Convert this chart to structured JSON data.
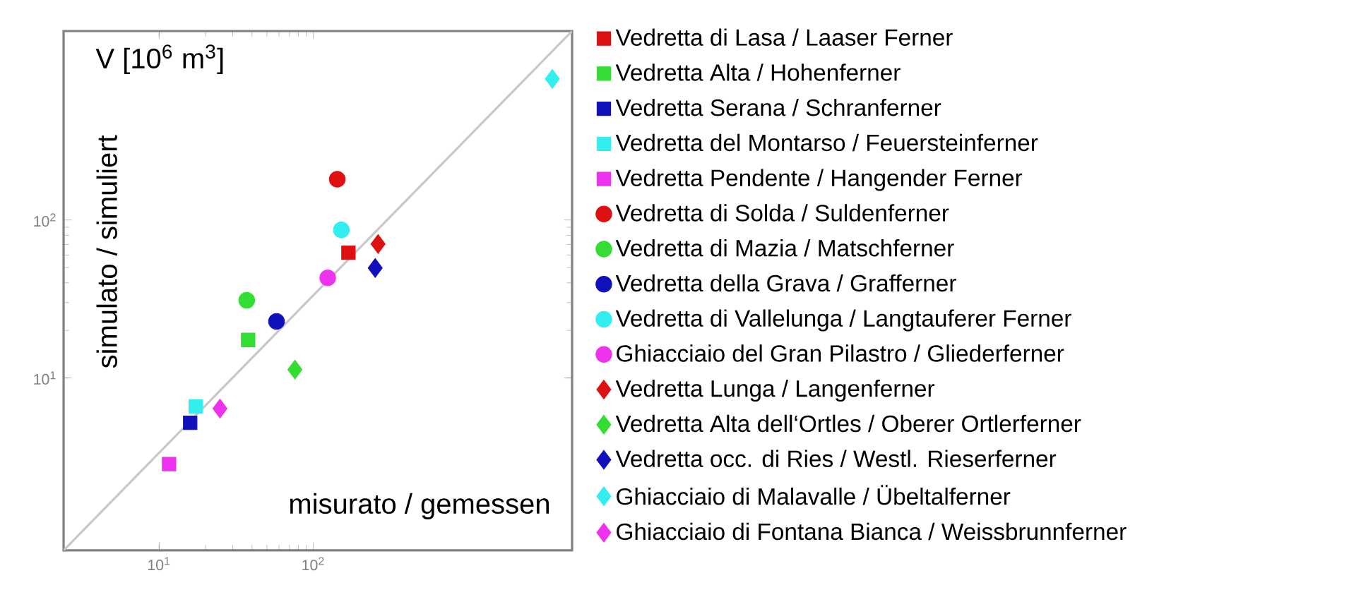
{
  "chart_data": {
    "type": "scatter",
    "title": "V [10$^{6}$ m$^{3}$]",
    "xlabel": "misurato / gemessen",
    "ylabel": "simulato / simuliert",
    "log": "xy",
    "grid": false,
    "legend": "right",
    "xlim": [
      2.4,
      4770
    ],
    "ylim": [
      0.81,
      1570
    ],
    "xticks": [
      {
        "value": 10,
        "label": "10$^{1}$"
      },
      {
        "value": 100,
        "label": "10$^{2}$"
      }
    ],
    "yticks": [
      {
        "value": 10,
        "label": "10$^{1}$"
      },
      {
        "value": 100,
        "label": "10$^{2}$"
      }
    ],
    "series": [
      {
        "name": "Vedretta di Lasa / Laaser Ferner",
        "color": "#dd1111",
        "marker": "square",
        "x": [
          169
        ],
        "values": [
          62
        ]
      },
      {
        "name": "Vedretta Alta / Hohenferner",
        "color": "#33dd33",
        "marker": "square",
        "x": [
          37.8
        ],
        "values": [
          17.4
        ]
      },
      {
        "name": "Vedretta Serana / Schranferner",
        "color": "#1111bb",
        "marker": "square",
        "x": [
          15.9
        ],
        "values": [
          5.2
        ]
      },
      {
        "name": "Vedretta del Montarso / Feuersteinferner",
        "color": "#33eeee",
        "marker": "square",
        "x": [
          17.3
        ],
        "values": [
          6.6
        ]
      },
      {
        "name": "Vedretta Pendente / Hangender Ferner",
        "color": "#ee33ee",
        "marker": "square",
        "x": [
          11.6
        ],
        "values": [
          2.85
        ]
      },
      {
        "name": "Vedretta di Solda / Suldenferner",
        "color": "#dd1111",
        "marker": "circle",
        "x": [
          143
        ],
        "values": [
          181
        ]
      },
      {
        "name": "Vedretta di Mazia / Matschferner",
        "color": "#33dd33",
        "marker": "circle",
        "x": [
          37
        ],
        "values": [
          31
        ]
      },
      {
        "name": "Vedretta della Grava / Grafferner",
        "color": "#1111bb",
        "marker": "circle",
        "x": [
          57.7
        ],
        "values": [
          22.8
        ]
      },
      {
        "name": "Vedretta di Vallelunga / Langtauferer Ferner",
        "color": "#33eeee",
        "marker": "circle",
        "x": [
          152
        ],
        "values": [
          86.6
        ]
      },
      {
        "name": "Ghiacciaio del Gran Pilastro / Gliederferner",
        "color": "#ee33ee",
        "marker": "circle",
        "x": [
          124
        ],
        "values": [
          43
        ]
      },
      {
        "name": "Vedretta Lunga / Langenferner",
        "color": "#dd1111",
        "marker": "diamond",
        "x": [
          263
        ],
        "values": [
          70.5
        ]
      },
      {
        "name": "Vedretta Alta dell‘Ortles / Oberer Ortlerferner",
        "color": "#33dd33",
        "marker": "diamond",
        "x": [
          76
        ],
        "values": [
          11.3
        ]
      },
      {
        "name": "Vedretta occ. di Ries / Westl. Rieserferner",
        "color": "#1111bb",
        "marker": "diamond",
        "x": [
          252
        ],
        "values": [
          49.7
        ]
      },
      {
        "name": "Ghiacciaio di Malavalle / Übeltalferner",
        "color": "#33eeee",
        "marker": "diamond",
        "x": [
          3550
        ],
        "values": [
          782
        ]
      },
      {
        "name": "Ghiacciaio di Fontana Bianca / Weissbrunnferner",
        "color": "#ee33ee",
        "marker": "diamond",
        "x": [
          24.8
        ],
        "values": [
          6.4
        ]
      },
      {
        "type": "line",
        "color": "#c8c8c8",
        "x": [
          2.4,
          4770
        ],
        "values": [
          0.81,
          1570
        ]
      }
    ]
  }
}
